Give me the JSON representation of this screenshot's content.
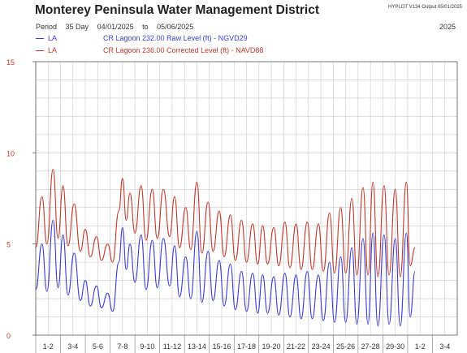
{
  "header": {
    "title": "Monterey Peninsula Water Management District",
    "meta": "HYPLOT V134  Output 05/01/2025",
    "period_label": "Period",
    "period_days": "35 Day",
    "start_date": "04/01/2025",
    "to_label": "to",
    "end_date": "05/06/2025",
    "year": "2025"
  },
  "colors": {
    "raw": "#3b3bd4",
    "corrected": "#c0392b",
    "grid": "#c8c8c8"
  },
  "chart_data": {
    "type": "line",
    "title": "Monterey Peninsula Water Management District",
    "ylim": [
      0,
      15
    ],
    "y_ticks": [
      0,
      5,
      10,
      15
    ],
    "y_tick_labels": [
      "0",
      "5",
      "10",
      "15"
    ],
    "grid": true,
    "categories": [
      "1-2",
      "3-4",
      "5-6",
      "7-8",
      "9-10",
      "11-12",
      "13-14",
      "15-16",
      "17-18",
      "19-20",
      "21-22",
      "23-24",
      "25-26",
      "27-28",
      "29-30",
      "1-2",
      "3-4"
    ],
    "x_unit": "days since 04/01/2025",
    "series": [
      {
        "code": "LA",
        "name": "CR Lagoon  232.00 Raw Level (ft) - NGVD29",
        "color": "#3b3bd4",
        "values": [
          [
            0,
            2.5
          ],
          [
            0.5,
            5.0
          ],
          [
            0.9,
            2.4
          ],
          [
            1.4,
            6.3
          ],
          [
            1.8,
            2.6
          ],
          [
            2.2,
            5.5
          ],
          [
            2.6,
            2.2
          ],
          [
            3.1,
            4.5
          ],
          [
            3.6,
            1.9
          ],
          [
            4.0,
            3.0
          ],
          [
            4.4,
            1.6
          ],
          [
            4.9,
            2.7
          ],
          [
            5.3,
            1.5
          ],
          [
            5.8,
            2.3
          ],
          [
            6.2,
            1.3
          ],
          [
            6.7,
            4.0
          ],
          [
            7.0,
            5.9
          ],
          [
            7.3,
            3.6
          ],
          [
            7.6,
            5.0
          ],
          [
            8.0,
            2.9
          ],
          [
            8.5,
            5.5
          ],
          [
            8.9,
            2.5
          ],
          [
            9.4,
            5.2
          ],
          [
            9.8,
            2.6
          ],
          [
            10.3,
            5.3
          ],
          [
            10.8,
            2.7
          ],
          [
            11.2,
            4.9
          ],
          [
            11.6,
            2.1
          ],
          [
            12.1,
            4.3
          ],
          [
            12.5,
            2.0
          ],
          [
            13.0,
            5.7
          ],
          [
            13.4,
            1.8
          ],
          [
            13.9,
            4.6
          ],
          [
            14.3,
            1.9
          ],
          [
            14.8,
            4.1
          ],
          [
            15.2,
            1.6
          ],
          [
            15.7,
            3.9
          ],
          [
            16.1,
            1.4
          ],
          [
            16.6,
            3.5
          ],
          [
            17.0,
            1.3
          ],
          [
            17.5,
            3.4
          ],
          [
            17.9,
            1.2
          ],
          [
            18.3,
            3.3
          ],
          [
            18.7,
            1.2
          ],
          [
            19.2,
            3.2
          ],
          [
            19.6,
            1.1
          ],
          [
            20.1,
            3.4
          ],
          [
            20.5,
            1.0
          ],
          [
            21.0,
            3.3
          ],
          [
            21.4,
            0.9
          ],
          [
            21.9,
            3.5
          ],
          [
            22.3,
            0.9
          ],
          [
            22.8,
            3.3
          ],
          [
            23.2,
            0.8
          ],
          [
            23.7,
            4.0
          ],
          [
            24.1,
            0.7
          ],
          [
            24.6,
            4.3
          ],
          [
            25.0,
            0.7
          ],
          [
            25.5,
            4.8
          ],
          [
            25.9,
            0.6
          ],
          [
            26.4,
            5.3
          ],
          [
            26.8,
            0.6
          ],
          [
            27.2,
            5.6
          ],
          [
            27.6,
            0.5
          ],
          [
            28.1,
            5.5
          ],
          [
            28.5,
            0.6
          ],
          [
            29.0,
            5.3
          ],
          [
            29.4,
            0.5
          ],
          [
            29.9,
            5.6
          ],
          [
            30.2,
            1.0
          ],
          [
            30.6,
            3.5
          ]
        ]
      },
      {
        "code": "LA",
        "name": "CR Lagoon  236.00 Corrected Level (ft) - NAVD88",
        "color": "#c0392b",
        "values": [
          [
            0,
            4.8
          ],
          [
            0.5,
            7.6
          ],
          [
            0.9,
            5.0
          ],
          [
            1.4,
            9.1
          ],
          [
            1.8,
            5.3
          ],
          [
            2.2,
            8.2
          ],
          [
            2.6,
            4.9
          ],
          [
            3.1,
            7.2
          ],
          [
            3.6,
            4.6
          ],
          [
            4.0,
            5.8
          ],
          [
            4.4,
            4.3
          ],
          [
            4.9,
            5.4
          ],
          [
            5.3,
            4.1
          ],
          [
            5.8,
            5.0
          ],
          [
            6.2,
            4.0
          ],
          [
            6.7,
            6.8
          ],
          [
            7.0,
            8.6
          ],
          [
            7.3,
            6.3
          ],
          [
            7.6,
            7.8
          ],
          [
            8.0,
            5.6
          ],
          [
            8.5,
            8.2
          ],
          [
            8.9,
            5.2
          ],
          [
            9.4,
            8.0
          ],
          [
            9.8,
            5.3
          ],
          [
            10.3,
            8.0
          ],
          [
            10.8,
            5.4
          ],
          [
            11.2,
            7.6
          ],
          [
            11.6,
            4.8
          ],
          [
            12.1,
            7.0
          ],
          [
            12.5,
            4.7
          ],
          [
            13.0,
            8.4
          ],
          [
            13.4,
            4.5
          ],
          [
            13.9,
            7.3
          ],
          [
            14.3,
            4.6
          ],
          [
            14.8,
            6.8
          ],
          [
            15.2,
            4.3
          ],
          [
            15.7,
            6.6
          ],
          [
            16.1,
            4.1
          ],
          [
            16.6,
            6.3
          ],
          [
            17.0,
            4.0
          ],
          [
            17.5,
            6.1
          ],
          [
            17.9,
            3.9
          ],
          [
            18.3,
            6.0
          ],
          [
            18.7,
            3.9
          ],
          [
            19.2,
            5.9
          ],
          [
            19.6,
            3.8
          ],
          [
            20.1,
            6.2
          ],
          [
            20.5,
            3.7
          ],
          [
            21.0,
            6.1
          ],
          [
            21.4,
            3.6
          ],
          [
            21.9,
            6.2
          ],
          [
            22.3,
            3.6
          ],
          [
            22.8,
            6.1
          ],
          [
            23.2,
            3.5
          ],
          [
            23.7,
            6.7
          ],
          [
            24.1,
            3.4
          ],
          [
            24.6,
            7.0
          ],
          [
            25.0,
            3.4
          ],
          [
            25.5,
            7.5
          ],
          [
            25.9,
            3.3
          ],
          [
            26.4,
            8.1
          ],
          [
            26.8,
            3.3
          ],
          [
            27.2,
            8.4
          ],
          [
            27.6,
            3.2
          ],
          [
            28.1,
            8.2
          ],
          [
            28.5,
            3.3
          ],
          [
            29.0,
            8.0
          ],
          [
            29.4,
            3.2
          ],
          [
            29.9,
            8.4
          ],
          [
            30.2,
            3.8
          ],
          [
            30.6,
            4.8
          ]
        ]
      }
    ]
  }
}
